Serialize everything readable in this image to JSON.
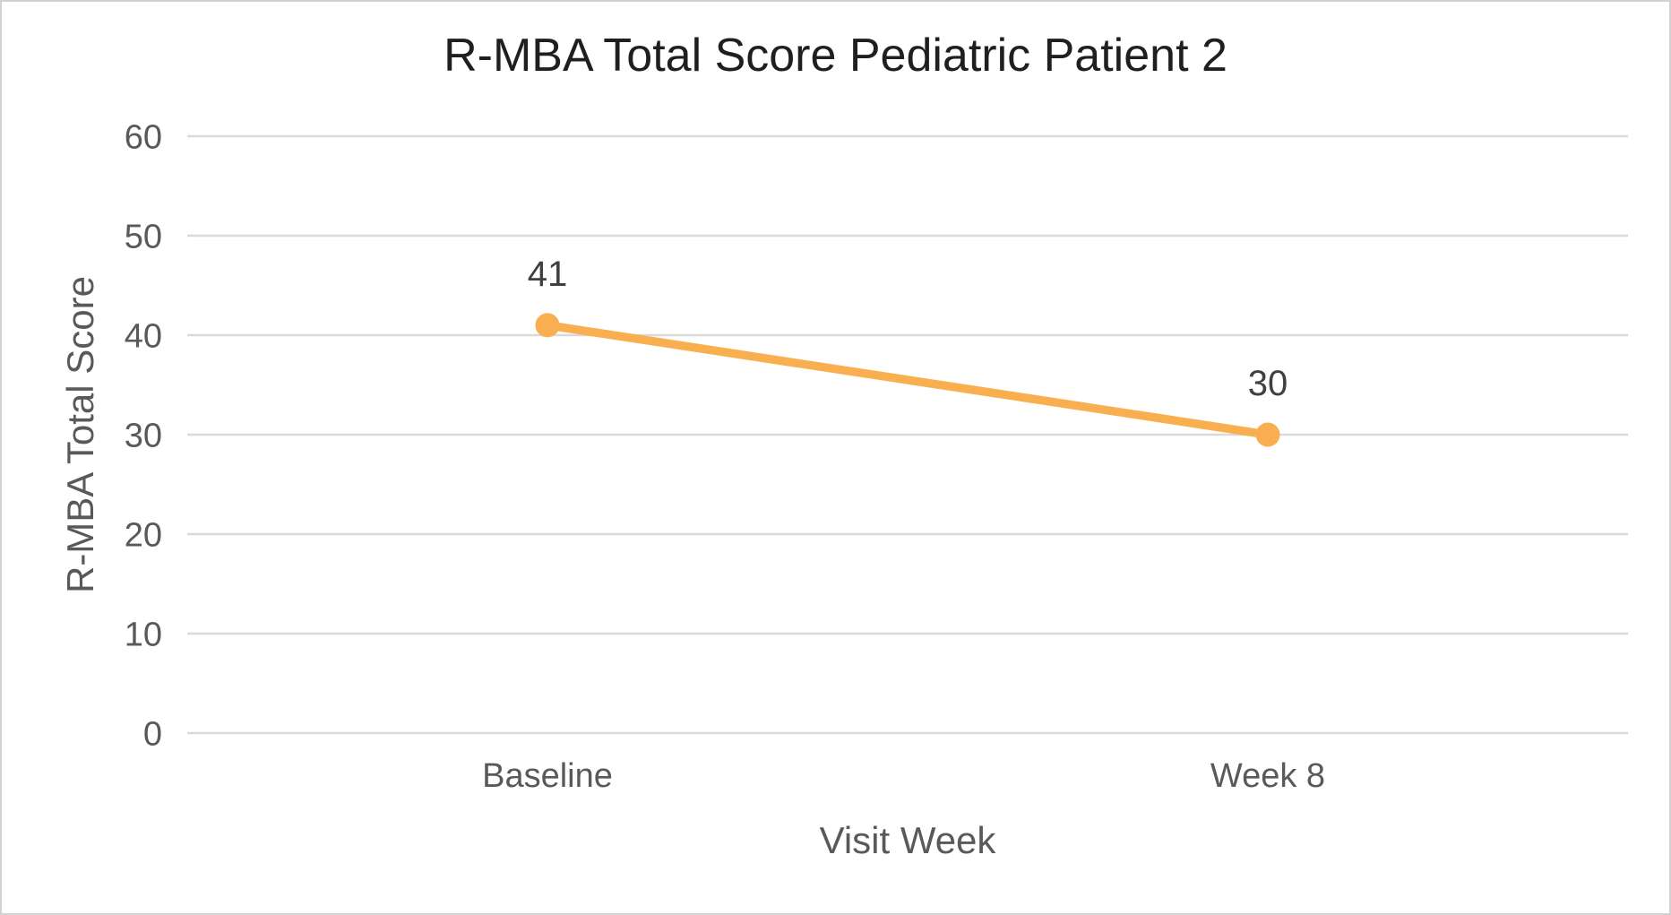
{
  "chart": {
    "title": "R-MBA Total Score Pediatric Patient 2",
    "y_axis_title": "R-MBA Total Score",
    "x_axis_title": "Visit Week"
  },
  "chart_data": {
    "type": "line",
    "title": "R-MBA Total Score Pediatric Patient 2",
    "xlabel": "Visit Week",
    "ylabel": "R-MBA Total Score",
    "categories": [
      "Baseline",
      "Week 8"
    ],
    "series": [
      {
        "name": "R-MBA Total Score",
        "values": [
          41,
          30
        ]
      }
    ],
    "data_labels": [
      "41",
      "30"
    ],
    "ylim": [
      0,
      60
    ],
    "yticks": [
      0,
      10,
      20,
      30,
      40,
      50,
      60
    ],
    "grid": true,
    "legend_position": "none",
    "colors": {
      "line": "#F9AF50",
      "marker": "#F9AF50",
      "gridline": "#D9D9D9",
      "axis_line": "#D9D9D9",
      "title_text": "#1F1F1F",
      "axis_text": "#595959",
      "data_label_text": "#404040",
      "background": "#FFFFFF",
      "border": "#D2D2D2"
    }
  }
}
